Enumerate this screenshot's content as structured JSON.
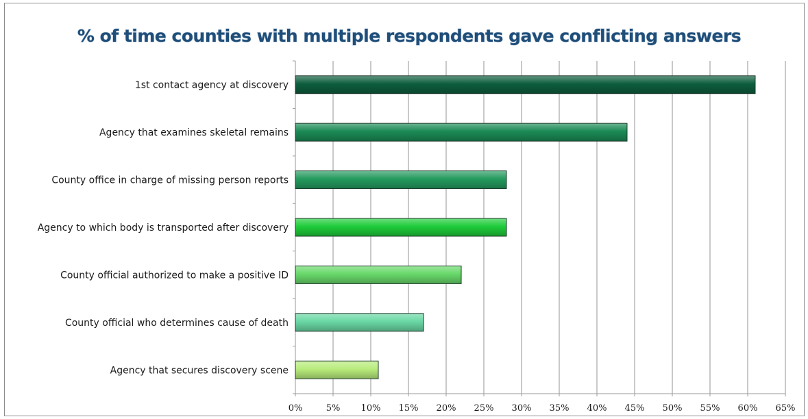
{
  "chart_data": {
    "type": "bar",
    "orientation": "horizontal",
    "title": "% of time counties with multiple respondents gave conflicting answers",
    "xlabel": "",
    "ylabel": "",
    "categories": [
      "1st contact agency at discovery",
      "Agency that examines skeletal remains",
      "County office in charge of missing person reports",
      "Agency to which body is transported after discovery",
      "County official authorized to make a positive ID",
      "County official who determines cause of death",
      "Agency that secures discovery scene"
    ],
    "values": [
      61,
      44,
      28,
      28,
      22,
      17,
      11
    ],
    "colors": [
      "#0d5e3e",
      "#1b8a55",
      "#249a5e",
      "#1fcc3a",
      "#68d86a",
      "#6ad8a4",
      "#b8ec7c"
    ],
    "xlim": [
      0,
      65
    ],
    "ticks": [
      "0%",
      "5%",
      "10%",
      "15%",
      "20%",
      "25%",
      "30%",
      "35%",
      "40%",
      "45%",
      "50%",
      "55%",
      "60%",
      "65%"
    ],
    "tick_values": [
      0,
      5,
      10,
      15,
      20,
      25,
      30,
      35,
      40,
      45,
      50,
      55,
      60,
      65
    ],
    "grid": true,
    "legend": "none"
  }
}
